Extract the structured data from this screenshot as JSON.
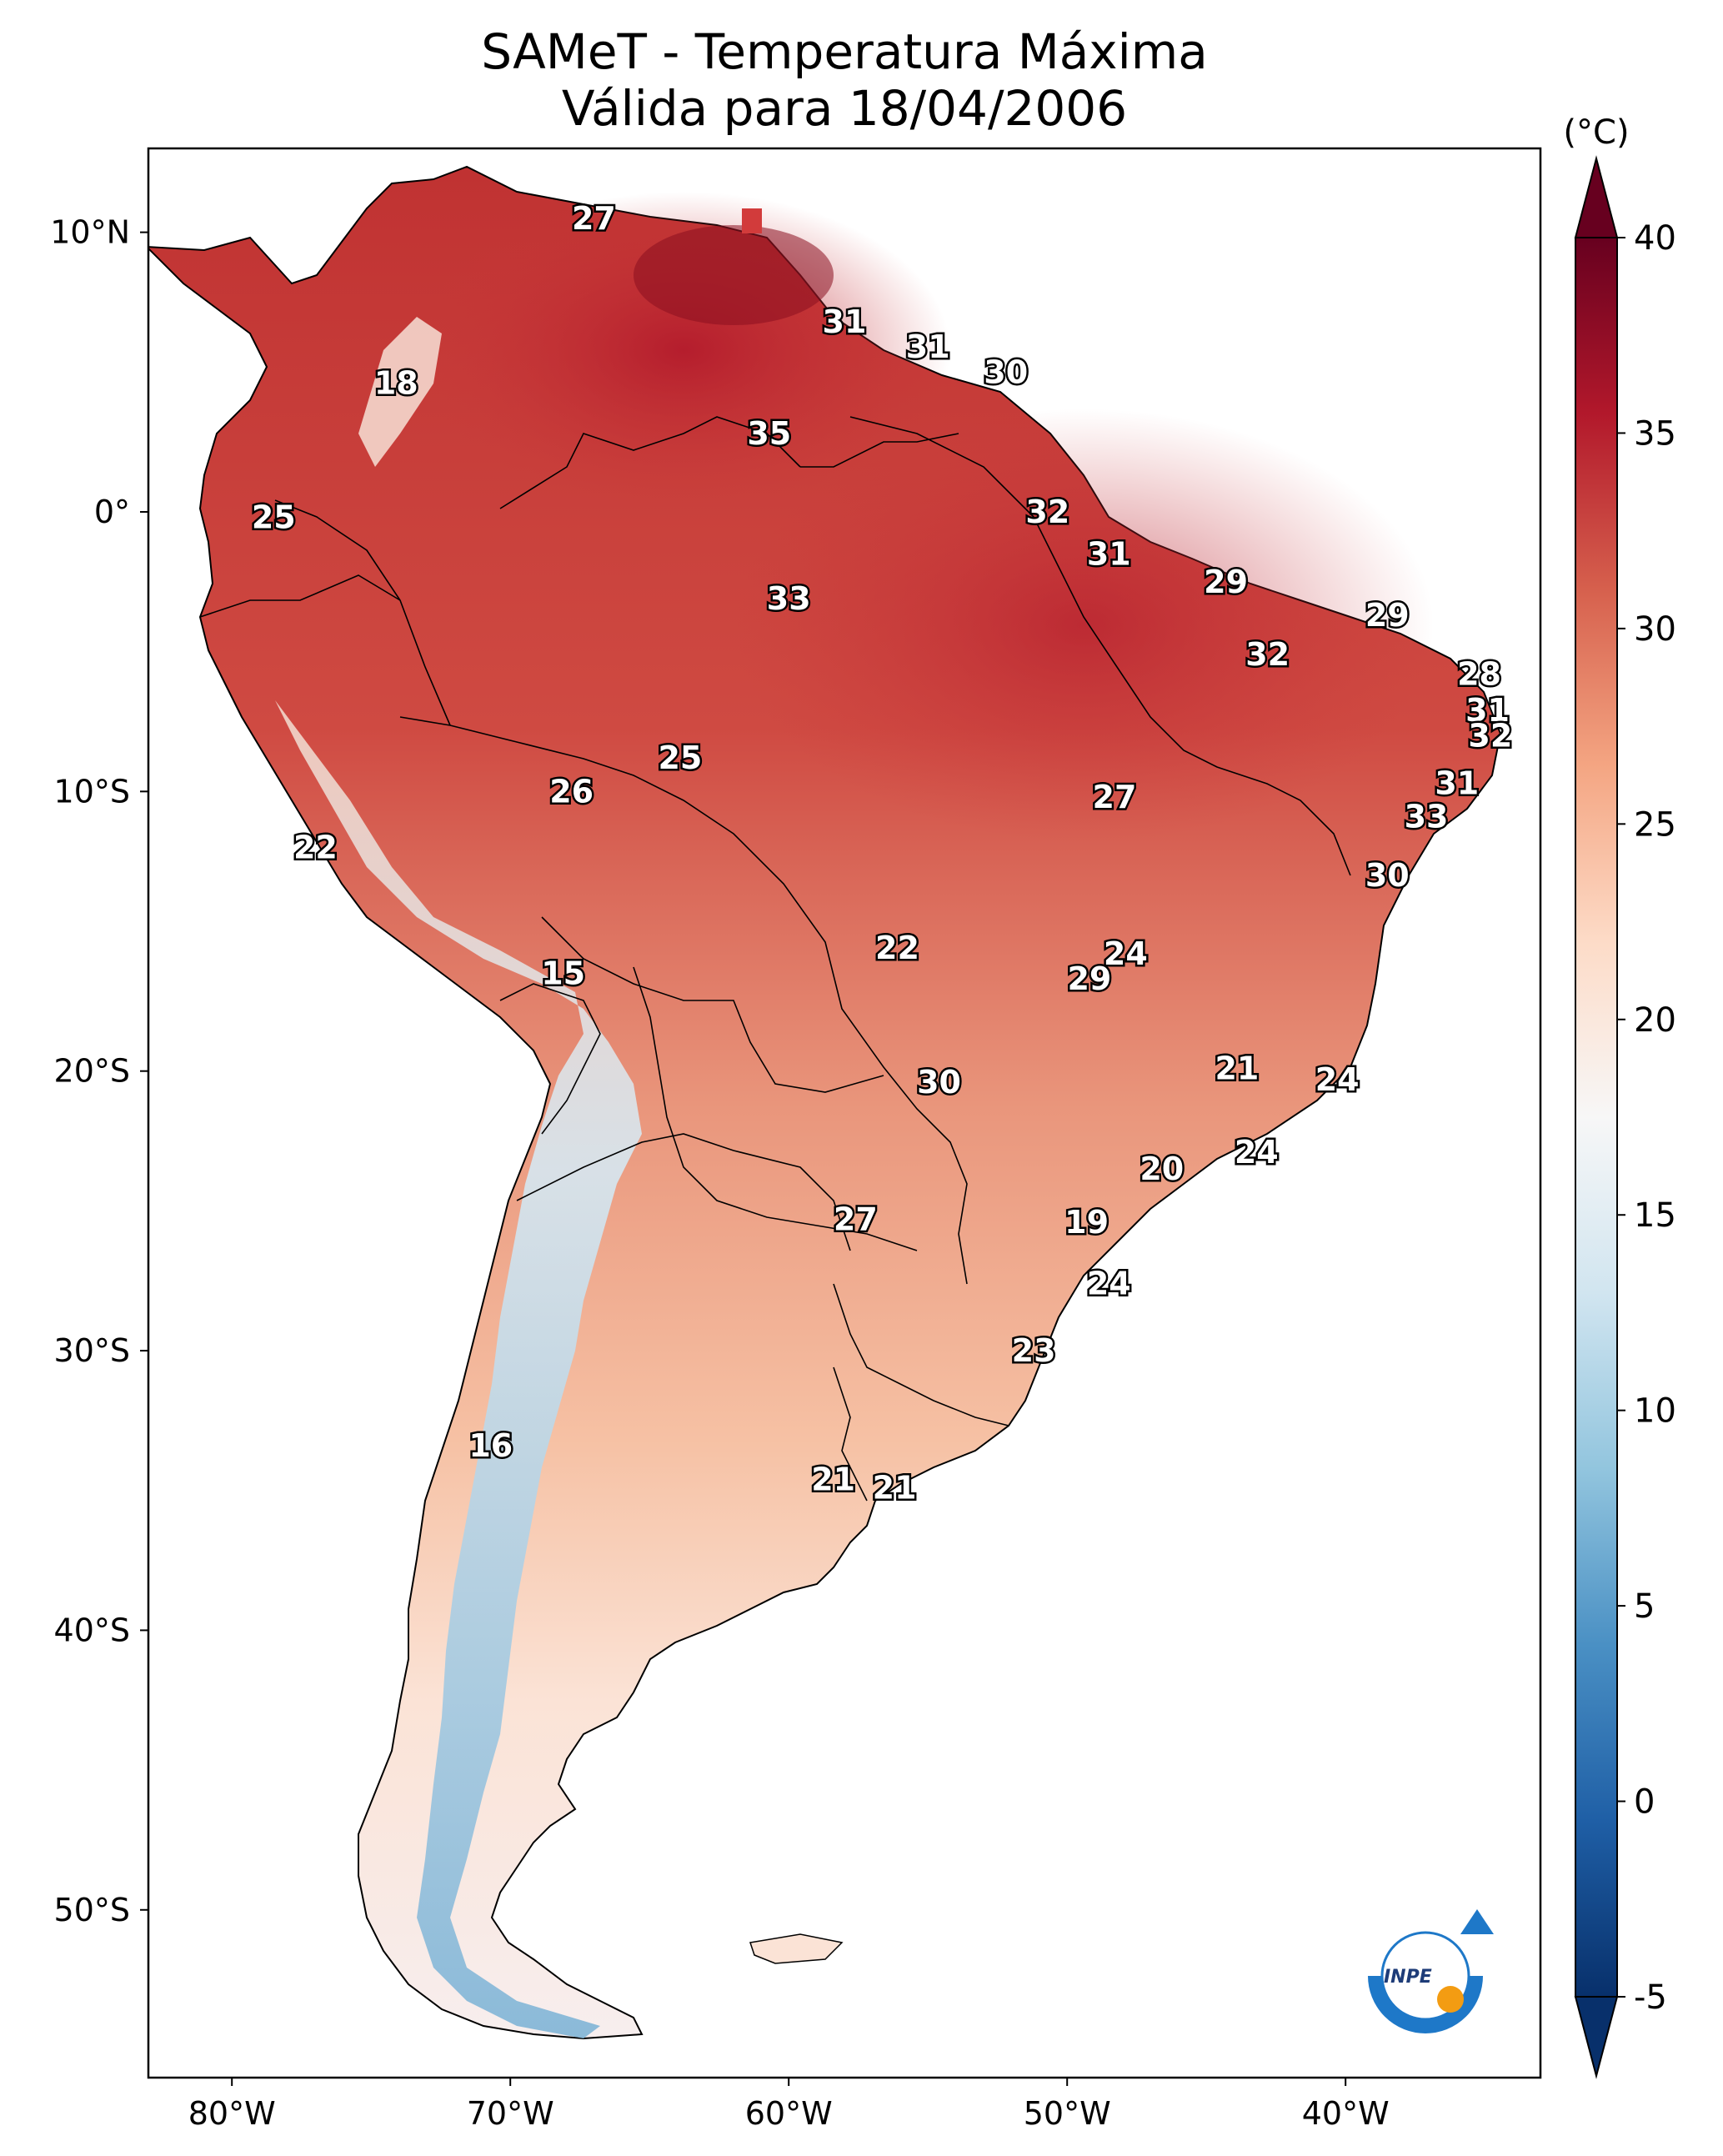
{
  "title": {
    "line1": "SAMeT - Temperatura Máxima",
    "line2": "Válida para 18/04/2006"
  },
  "colorbar": {
    "unit_label": "(°C)",
    "min": -5,
    "max": 40,
    "tick_labels": [
      "40",
      "35",
      "30",
      "25",
      "20",
      "15",
      "10",
      "5",
      "0",
      "-5"
    ],
    "tick_values": [
      40,
      35,
      30,
      25,
      20,
      15,
      10,
      5,
      0,
      -5
    ],
    "colors": [
      "#08306b",
      "#1f5fa6",
      "#4a90c4",
      "#92c5de",
      "#d1e5f0",
      "#f7f7f7",
      "#fddbc7",
      "#f4a582",
      "#d6604d",
      "#b2182b",
      "#67001f"
    ]
  },
  "axes": {
    "lon_labels": [
      "80°W",
      "70°W",
      "60°W",
      "50°W",
      "40°W"
    ],
    "lon_values": [
      -80,
      -70,
      -60,
      -50,
      -40
    ],
    "lat_labels": [
      "10°N",
      "0°",
      "10°S",
      "20°S",
      "30°S",
      "40°S",
      "50°S"
    ],
    "lat_values": [
      10,
      0,
      -10,
      -20,
      -30,
      -40,
      -50
    ],
    "lon_range": [
      -83,
      -33
    ],
    "lat_range": [
      -56,
      13
    ]
  },
  "stations": [
    {
      "label": "27",
      "lon": -67,
      "lat": 10.5
    },
    {
      "label": "31",
      "lon": -58,
      "lat": 6.8
    },
    {
      "label": "31",
      "lon": -55,
      "lat": 5.9
    },
    {
      "label": "30",
      "lon": -52.2,
      "lat": 5
    },
    {
      "label": "18",
      "lon": -74.1,
      "lat": 4.6
    },
    {
      "label": "35",
      "lon": -60.7,
      "lat": 2.8
    },
    {
      "label": "25",
      "lon": -78.5,
      "lat": -0.2
    },
    {
      "label": "32",
      "lon": -50.7,
      "lat": 0
    },
    {
      "label": "31",
      "lon": -48.5,
      "lat": -1.5
    },
    {
      "label": "29",
      "lon": -44.3,
      "lat": -2.5
    },
    {
      "label": "33",
      "lon": -60,
      "lat": -3.1
    },
    {
      "label": "29",
      "lon": -38.5,
      "lat": -3.7
    },
    {
      "label": "32",
      "lon": -42.8,
      "lat": -5.1
    },
    {
      "label": "28",
      "lon": -35.2,
      "lat": -5.8
    },
    {
      "label": "31",
      "lon": -34.9,
      "lat": -7.1
    },
    {
      "label": "32",
      "lon": -34.8,
      "lat": -8
    },
    {
      "label": "25",
      "lon": -63.9,
      "lat": -8.8
    },
    {
      "label": "26",
      "lon": -67.8,
      "lat": -10
    },
    {
      "label": "27",
      "lon": -48.3,
      "lat": -10.2
    },
    {
      "label": "31",
      "lon": -36,
      "lat": -9.7
    },
    {
      "label": "33",
      "lon": -37.1,
      "lat": -10.9
    },
    {
      "label": "22",
      "lon": -77,
      "lat": -12
    },
    {
      "label": "30",
      "lon": -38.5,
      "lat": -13
    },
    {
      "label": "22",
      "lon": -56.1,
      "lat": -15.6
    },
    {
      "label": "24",
      "lon": -47.9,
      "lat": -15.8
    },
    {
      "label": "29",
      "lon": -49.2,
      "lat": -16.7
    },
    {
      "label": "15",
      "lon": -68.1,
      "lat": -16.5
    },
    {
      "label": "30",
      "lon": -54.6,
      "lat": -20.4
    },
    {
      "label": "21",
      "lon": -43.9,
      "lat": -19.9
    },
    {
      "label": "24",
      "lon": -40.3,
      "lat": -20.3
    },
    {
      "label": "20",
      "lon": -46.6,
      "lat": -23.5
    },
    {
      "label": "24",
      "lon": -43.2,
      "lat": -22.9
    },
    {
      "label": "27",
      "lon": -57.6,
      "lat": -25.3
    },
    {
      "label": "19",
      "lon": -49.3,
      "lat": -25.4
    },
    {
      "label": "24",
      "lon": -48.5,
      "lat": -27.6
    },
    {
      "label": "23",
      "lon": -51.2,
      "lat": -30
    },
    {
      "label": "16",
      "lon": -70.7,
      "lat": -33.4
    },
    {
      "label": "21",
      "lon": -58.4,
      "lat": -34.6
    },
    {
      "label": "21",
      "lon": -56.2,
      "lat": -34.9
    }
  ],
  "logo": {
    "text": "INPE"
  }
}
